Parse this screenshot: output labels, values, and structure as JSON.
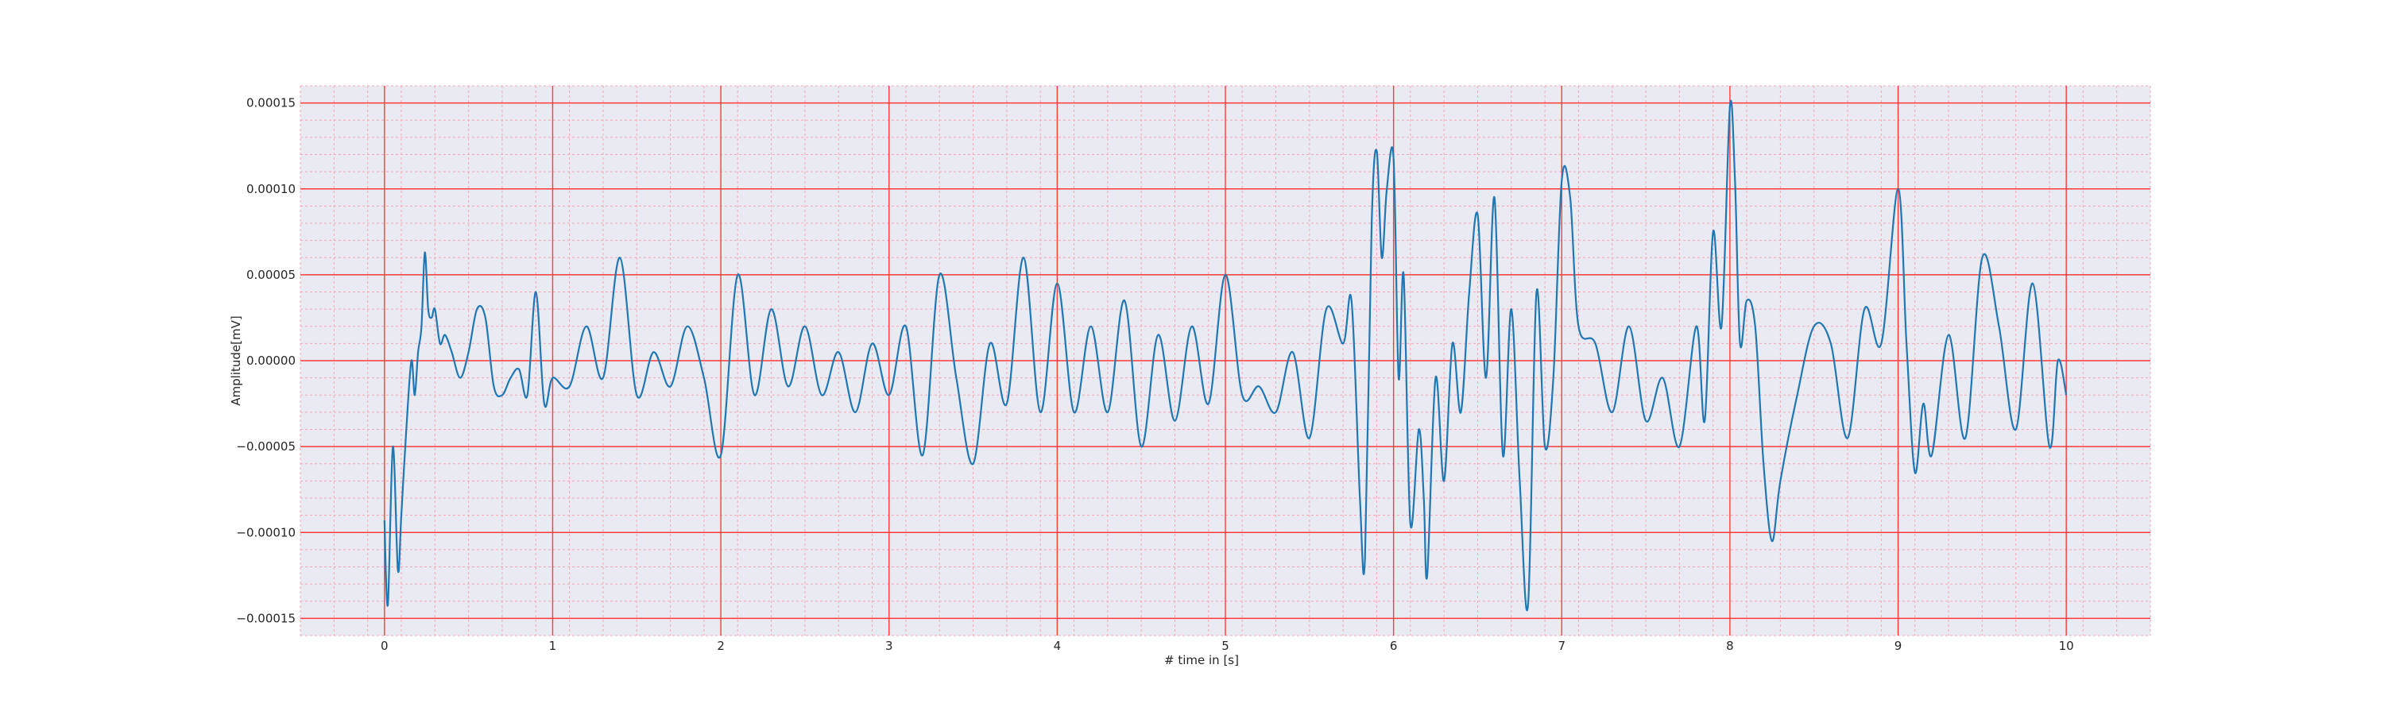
{
  "chart_data": {
    "type": "line",
    "title": "",
    "xlabel": "# time in [s]",
    "ylabel": "Amplitude[mV]",
    "xlim": [
      -0.5,
      10.5
    ],
    "ylim": [
      -0.00016,
      0.00016
    ],
    "x_ticks": [
      0,
      1,
      2,
      3,
      4,
      5,
      6,
      7,
      8,
      9,
      10
    ],
    "x_tick_labels": [
      "0",
      "1",
      "2",
      "3",
      "4",
      "5",
      "6",
      "7",
      "8",
      "9",
      "10"
    ],
    "y_ticks": [
      -0.00015,
      -0.0001,
      -5e-05,
      0,
      5e-05,
      0.0001,
      0.00015
    ],
    "y_tick_labels": [
      "−0.00015",
      "−0.00010",
      "−0.00005",
      "0.00000",
      "0.00005",
      "0.00010",
      "0.00015"
    ],
    "grid": true,
    "minor_grid": true,
    "legend": "none",
    "colors": {
      "line": "#1f77b4",
      "background": "#eaeaf2",
      "major_grid": "#ff3b3b",
      "minor_grid": "#f3a9b6"
    },
    "series": [
      {
        "values_x": [
          0,
          0.02,
          0.05,
          0.08,
          0.1,
          0.13,
          0.16,
          0.18,
          0.2,
          0.22,
          0.24,
          0.26,
          0.28,
          0.3,
          0.33,
          0.36,
          0.4,
          0.45,
          0.5,
          0.55,
          0.6,
          0.65,
          0.7,
          0.75,
          0.8,
          0.85,
          0.9,
          0.95,
          1.0,
          1.1,
          1.2,
          1.3,
          1.4,
          1.5,
          1.6,
          1.7,
          1.8,
          1.9,
          2.0,
          2.1,
          2.2,
          2.3,
          2.4,
          2.5,
          2.6,
          2.7,
          2.8,
          2.9,
          3.0,
          3.1,
          3.2,
          3.3,
          3.4,
          3.5,
          3.6,
          3.7,
          3.8,
          3.9,
          4.0,
          4.1,
          4.2,
          4.3,
          4.4,
          4.5,
          4.6,
          4.7,
          4.8,
          4.9,
          5.0,
          5.1,
          5.2,
          5.3,
          5.4,
          5.5,
          5.6,
          5.7,
          5.75,
          5.8,
          5.83,
          5.87,
          5.9,
          5.93,
          5.96,
          6.0,
          6.03,
          6.06,
          6.1,
          6.15,
          6.18,
          6.2,
          6.25,
          6.3,
          6.35,
          6.4,
          6.45,
          6.5,
          6.55,
          6.6,
          6.65,
          6.7,
          6.75,
          6.8,
          6.85,
          6.9,
          6.95,
          7.0,
          7.05,
          7.1,
          7.2,
          7.3,
          7.4,
          7.5,
          7.6,
          7.7,
          7.8,
          7.85,
          7.9,
          7.95,
          8.0,
          8.03,
          8.06,
          8.1,
          8.15,
          8.2,
          8.25,
          8.3,
          8.4,
          8.5,
          8.6,
          8.7,
          8.8,
          8.9,
          9.0,
          9.05,
          9.1,
          9.15,
          9.2,
          9.3,
          9.4,
          9.5,
          9.6,
          9.7,
          9.8,
          9.9,
          9.95,
          10.0
        ],
        "values_y": [
          -9.3e-05,
          -0.000142,
          -5e-05,
          -0.000122,
          -9e-05,
          -4e-05,
          0.0,
          -2e-05,
          5e-06,
          2e-05,
          6.3e-05,
          3e-05,
          2.5e-05,
          3e-05,
          1e-05,
          1.5e-05,
          5e-06,
          -1e-05,
          5e-06,
          3e-05,
          2.5e-05,
          -1.5e-05,
          -2e-05,
          -1e-05,
          -5e-06,
          -2e-05,
          4e-05,
          -2.5e-05,
          -1e-05,
          -1.5e-05,
          2e-05,
          -1e-05,
          6e-05,
          -2e-05,
          5e-06,
          -1.5e-05,
          2e-05,
          -1e-05,
          -5.5e-05,
          5e-05,
          -2e-05,
          3e-05,
          -1.5e-05,
          2e-05,
          -2e-05,
          5e-06,
          -3e-05,
          1e-05,
          -2e-05,
          2e-05,
          -5.5e-05,
          5e-05,
          -1e-05,
          -6e-05,
          1e-05,
          -2.5e-05,
          6e-05,
          -3e-05,
          4.5e-05,
          -3e-05,
          2e-05,
          -3e-05,
          3.5e-05,
          -5e-05,
          1.5e-05,
          -3.5e-05,
          2e-05,
          -2.5e-05,
          5e-05,
          -2e-05,
          -1.5e-05,
          -3e-05,
          5e-06,
          -4.5e-05,
          3e-05,
          1e-05,
          3.5e-05,
          -8e-05,
          -0.000115,
          8e-05,
          0.000122,
          6e-05,
          0.0001,
          0.000118,
          -1e-05,
          5e-05,
          -9.5e-05,
          -4e-05,
          -8e-05,
          -0.000125,
          -1e-05,
          -7e-05,
          1e-05,
          -3e-05,
          4e-05,
          8.5e-05,
          -1e-05,
          9.5e-05,
          -5.5e-05,
          3e-05,
          -7e-05,
          -0.000142,
          4e-05,
          -5e-05,
          -1e-05,
          0.000105,
          9.5e-05,
          2e-05,
          1e-05,
          -3e-05,
          2e-05,
          -3.5e-05,
          -1e-05,
          -5e-05,
          2e-05,
          -3.5e-05,
          7.5e-05,
          2e-05,
          0.000148,
          0.000105,
          1e-05,
          3.5e-05,
          2e-05,
          -6e-05,
          -0.000105,
          -7e-05,
          -2e-05,
          2e-05,
          1e-05,
          -4.5e-05,
          3e-05,
          1e-05,
          0.0001,
          1e-05,
          -6.5e-05,
          -2.5e-05,
          -5.5e-05,
          1.5e-05,
          -4.5e-05,
          6e-05,
          2e-05,
          -4e-05,
          4.5e-05,
          -5e-05,
          0.0,
          -2e-05
        ]
      }
    ]
  }
}
